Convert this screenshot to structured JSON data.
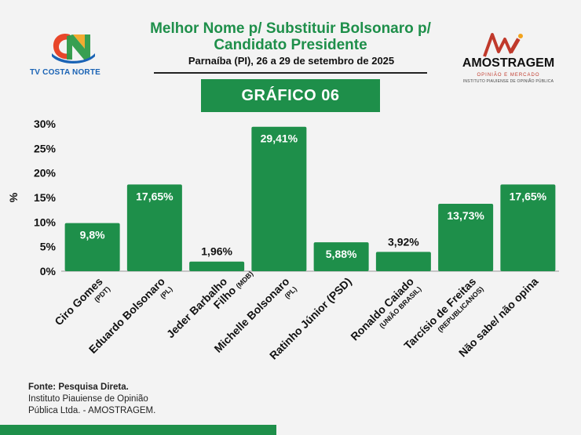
{
  "header": {
    "title": "Melhor Nome p/ Substituir Bolsonaro p/ Candidato Presidente",
    "subtitle": "Parnaíba (PI), 26 a 29 de setembro de 2025",
    "badge": "GRÁFICO 06"
  },
  "logos": {
    "left_text": "TV COSTA NORTE",
    "right_brand": "AMOSTRAGEM",
    "right_tagline": "OPINIÃO E MERCADO",
    "right_institute": "INSTITUTO PIAUIENSE DE OPINIÃO PÚBLICA"
  },
  "colors": {
    "accent": "#1e8f4a",
    "bar": "#1e8f4a",
    "text": "#111111"
  },
  "chart_data": {
    "type": "bar",
    "ylabel": "%",
    "ylim": [
      0,
      30
    ],
    "yticks": [
      "0%",
      "5%",
      "10%",
      "15%",
      "20%",
      "25%",
      "30%"
    ],
    "grid": false,
    "categories": [
      {
        "name": "Ciro Gomes",
        "party": "(PDT)"
      },
      {
        "name": "Eduardo Bolsonaro",
        "party": "(PL)"
      },
      {
        "name": "Jeder Barbalho",
        "name2": "Filho",
        "party": "(MDB)"
      },
      {
        "name": "Michelle Bolsonaro",
        "party": "(PL)"
      },
      {
        "name": "Ratinho Júnior (PSD)",
        "party": ""
      },
      {
        "name": "Ronaldo Caiado",
        "party": "(UNIÃO BRASIL)"
      },
      {
        "name": "Tarcísio de Freitas",
        "party": "(REPUBLICANOS)"
      },
      {
        "name": "Não sabe/ não opina",
        "party": ""
      }
    ],
    "values": [
      9.8,
      17.65,
      1.96,
      29.41,
      5.88,
      3.92,
      13.73,
      17.65
    ],
    "data_labels": [
      "9,8%",
      "17,65%",
      "1,96%",
      "29,41%",
      "5,88%",
      "3,92%",
      "13,73%",
      "17,65%"
    ]
  },
  "footer": {
    "line1": "Fonte: Pesquisa Direta.",
    "line2": "Instituto Piauiense de Opinião",
    "line3": "Pública Ltda. - AMOSTRAGEM."
  }
}
